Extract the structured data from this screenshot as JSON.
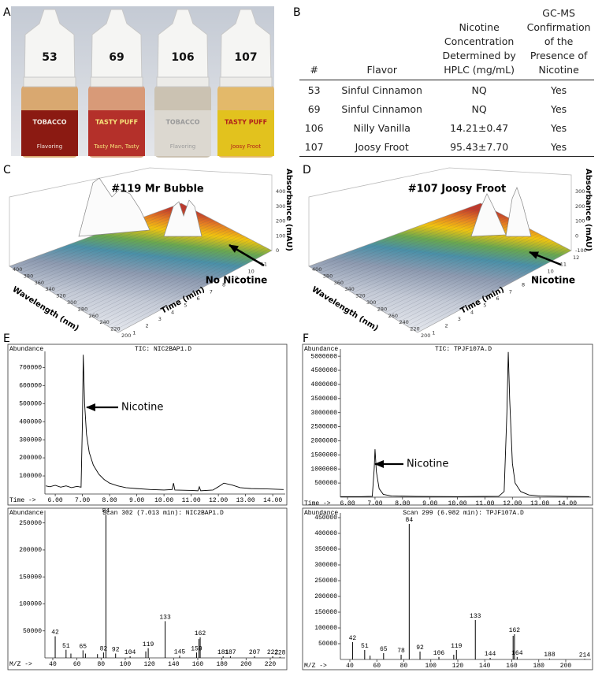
{
  "panels": {
    "A": {
      "label": "A",
      "bottles": [
        {
          "number": 53,
          "brand": "TOBACCO",
          "tagline": "Flavoring"
        },
        {
          "number": 69,
          "brand": "TASTY PUFF",
          "tagline": "Tasty Man, Tasty"
        },
        {
          "number": 106,
          "brand": "TOBACCO",
          "tagline": "Flavoring"
        },
        {
          "number": 107,
          "brand": "TASTY PUFF",
          "tagline": "Joosy Froot"
        }
      ]
    },
    "B": {
      "label": "B",
      "table": {
        "header": [
          [
            "#"
          ],
          [
            "Flavor"
          ],
          [
            "Nicotine",
            "Concentration",
            "Determined by",
            "HPLC (mg/mL)"
          ],
          [
            "GC-MS",
            "Confirmation",
            "of the",
            "Presence of",
            "Nicotine"
          ]
        ],
        "rows": [
          [
            "53",
            "Sinful Cinnamon",
            "NQ",
            "Yes"
          ],
          [
            "69",
            "Sinful Cinnamon",
            "NQ",
            "Yes"
          ],
          [
            "106",
            "Nilly Vanilla",
            "14.21±0.47",
            "Yes"
          ],
          [
            "107",
            "Joosy Froot",
            "95.43±7.70",
            "Yes"
          ]
        ]
      }
    },
    "C": {
      "label": "C",
      "title": "#119 Mr Bubble",
      "absorbance_label": "Absorbance (mAU)",
      "wavelength_label": "Wavelength (nm)",
      "time_label": "Time (min)",
      "annotation": "No Nicotine",
      "wavelength_ticks": [
        400,
        380,
        360,
        340,
        320,
        300,
        280,
        260,
        240,
        220,
        200
      ],
      "time_lim": [
        0,
        12
      ],
      "time_ticks": [
        1,
        2,
        3,
        4,
        5,
        6,
        7,
        8,
        9,
        10,
        11
      ],
      "absorbance_ticks": [
        400,
        300,
        200,
        100,
        0
      ]
    },
    "D": {
      "label": "D",
      "title": "#107 Joosy Froot",
      "absorbance_label": "Absorbance (mAU)",
      "wavelength_label": "Wavelength (nm)",
      "time_label": "Time (min)",
      "annotation": "Nicotine",
      "wavelength_ticks": [
        400,
        380,
        360,
        340,
        320,
        300,
        280,
        260,
        240,
        220,
        200
      ],
      "time_lim": [
        0,
        12
      ],
      "time_ticks": [
        1,
        2,
        3,
        4,
        5,
        6,
        7,
        8,
        9,
        10,
        11,
        12
      ],
      "absorbance_ticks": [
        300,
        200,
        100,
        0,
        -100
      ]
    },
    "E": {
      "label": "E",
      "tic": {
        "type": "line",
        "y_label": "Abundance",
        "title": "TIC: NIC2BAP1.D",
        "x_label": "Time ->",
        "annotation": "Nicotine",
        "xlim": [
          5.62,
          14.46
        ],
        "ylim": [
          0,
          780000
        ],
        "xticks": [
          {
            "value": 6,
            "label": "6.00"
          },
          {
            "value": 7,
            "label": "7.00"
          },
          {
            "value": 8,
            "label": "8.00"
          },
          {
            "value": 9,
            "label": "9.00"
          },
          {
            "value": 10,
            "label": "10.00"
          },
          {
            "value": 11,
            "label": "11.00"
          },
          {
            "value": 12,
            "label": "12.00"
          },
          {
            "value": 13,
            "label": "13.00"
          },
          {
            "value": 14,
            "label": "14.00"
          }
        ],
        "yticks": [
          100000,
          200000,
          300000,
          400000,
          500000,
          600000,
          700000
        ],
        "x": [
          5.65,
          5.8,
          6.0,
          6.2,
          6.4,
          6.6,
          6.8,
          6.95,
          7.0,
          7.03,
          7.08,
          7.15,
          7.25,
          7.4,
          7.6,
          7.8,
          8.0,
          8.3,
          8.6,
          9.0,
          9.5,
          10.0,
          10.3,
          10.35,
          10.4,
          11.0,
          11.25,
          11.3,
          11.35,
          11.8,
          12.0,
          12.2,
          12.5,
          12.8,
          13.2,
          13.8,
          14.4
        ],
        "y": [
          45000,
          40000,
          48000,
          38000,
          45000,
          35000,
          42000,
          38000,
          400000,
          770000,
          500000,
          330000,
          230000,
          160000,
          110000,
          80000,
          60000,
          45000,
          35000,
          30000,
          25000,
          22000,
          25000,
          60000,
          22000,
          20000,
          18000,
          40000,
          18000,
          22000,
          40000,
          60000,
          50000,
          35000,
          30000,
          28000,
          25000
        ]
      },
      "spectrum": {
        "type": "stem",
        "y_label": "Abundance",
        "title": "Scan 302 (7.013 min): NIC2BAP1.D",
        "x_label": "M/Z ->",
        "xlim": [
          33.5,
          232.4
        ],
        "ylim": [
          0,
          270000
        ],
        "xticks": [
          40,
          60,
          80,
          100,
          120,
          140,
          160,
          180,
          200,
          220
        ],
        "yticks": [
          50000,
          100000,
          150000,
          200000,
          250000
        ],
        "mz": [
          42,
          51,
          55,
          65,
          67,
          77,
          82,
          84,
          92,
          104,
          117,
          119,
          133,
          145,
          159,
          161,
          162,
          181,
          187,
          207,
          222,
          228
        ],
        "abundance": [
          40000,
          15000,
          8000,
          14000,
          8000,
          7000,
          10000,
          265000,
          8000,
          3000,
          12000,
          18000,
          68000,
          4000,
          10000,
          35000,
          38000,
          3000,
          3000,
          3000,
          3000,
          2000
        ],
        "peak_labels": [
          42,
          51,
          65,
          82,
          84,
          92,
          104,
          119,
          133,
          145,
          159,
          162,
          181,
          187,
          207,
          222,
          228
        ]
      }
    },
    "F": {
      "label": "F",
      "tic": {
        "type": "line",
        "y_label": "Abundance",
        "title": "TIC: TPJF107A.D",
        "x_label": "Time ->",
        "annotation": "Nicotine",
        "xlim": [
          5.74,
          14.86
        ],
        "ylim": [
          0,
          5200000
        ],
        "xticks": [
          {
            "value": 6,
            "label": "6.00"
          },
          {
            "value": 7,
            "label": "7.00"
          },
          {
            "value": 8,
            "label": "8.00"
          },
          {
            "value": 9,
            "label": "9.00"
          },
          {
            "value": 10,
            "label": "10.00"
          },
          {
            "value": 11,
            "label": "11.00"
          },
          {
            "value": 12,
            "label": "12.00"
          },
          {
            "value": 13,
            "label": "13.00"
          },
          {
            "value": 14,
            "label": "14.00"
          }
        ],
        "yticks": [
          500000,
          1000000,
          1500000,
          2000000,
          2500000,
          3000000,
          3500000,
          4000000,
          4500000,
          5000000
        ],
        "x": [
          5.75,
          6.5,
          6.9,
          6.97,
          7.0,
          7.05,
          7.15,
          7.3,
          7.6,
          8.5,
          10.0,
          11.5,
          11.7,
          11.8,
          11.85,
          11.9,
          12.0,
          12.1,
          12.3,
          12.6,
          13.0,
          14.0,
          14.8
        ],
        "y": [
          20000,
          20000,
          30000,
          1000000,
          1700000,
          900000,
          300000,
          100000,
          40000,
          25000,
          20000,
          30000,
          200000,
          3000000,
          5150000,
          3500000,
          1200000,
          500000,
          200000,
          80000,
          40000,
          25000,
          20000
        ]
      },
      "spectrum": {
        "type": "stem",
        "y_label": "Abundance",
        "title": "Scan 299 (6.982 min): TPJF107A.D",
        "x_label": "M/Z ->",
        "xlim": [
          33,
          218.7
        ],
        "ylim": [
          0,
          460000
        ],
        "xticks": [
          40,
          60,
          80,
          100,
          120,
          140,
          160,
          180,
          200
        ],
        "yticks": [
          50000,
          100000,
          150000,
          200000,
          250000,
          300000,
          350000,
          400000,
          450000
        ],
        "mz": [
          42,
          51,
          55,
          65,
          78,
          84,
          92,
          106,
          117,
          119,
          133,
          144,
          161,
          162,
          164,
          188,
          214
        ],
        "abundance": [
          55000,
          30000,
          12000,
          20000,
          15000,
          430000,
          25000,
          8000,
          15000,
          30000,
          125000,
          5000,
          75000,
          80000,
          8000,
          3000,
          2000
        ],
        "peak_labels": [
          42,
          51,
          65,
          78,
          84,
          92,
          106,
          119,
          133,
          144,
          162,
          164,
          188,
          214
        ]
      }
    }
  }
}
